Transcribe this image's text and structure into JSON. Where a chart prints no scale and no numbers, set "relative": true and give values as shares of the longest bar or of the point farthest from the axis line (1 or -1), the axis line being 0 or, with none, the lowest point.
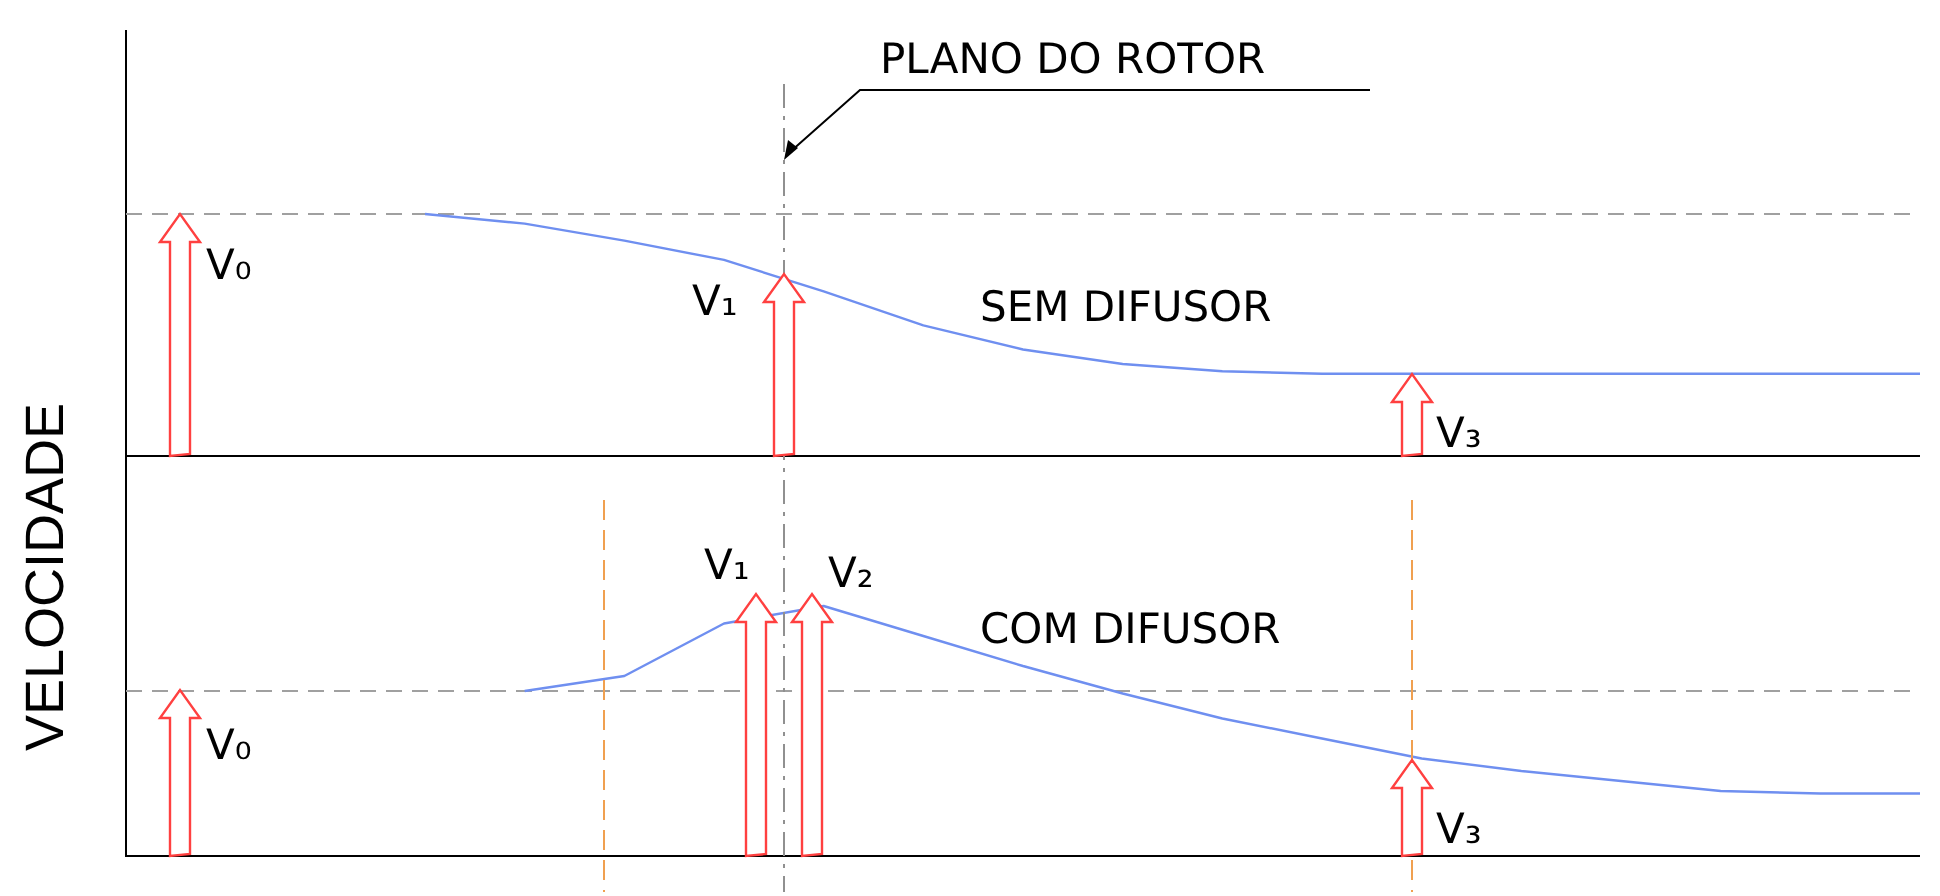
{
  "chart_data": [
    {
      "type": "line",
      "relative": true,
      "ylabel": "VELOCIDADE",
      "categories": [
        null,
        null,
        null,
        null,
        null,
        null,
        null,
        null,
        null,
        null,
        null,
        null,
        null,
        null,
        null,
        null,
        null,
        null,
        null
      ],
      "series": [
        {
          "color": "#6f8ff0",
          "values": [
            null,
            null,
            null,
            1,
            0.96,
            0.89,
            0.81,
            0.68,
            0.54,
            0.44,
            0.38,
            0.35,
            0.34,
            0.34,
            0.34,
            0.34,
            0.34,
            0.34,
            0.34
          ]
        }
      ],
      "ref_lines": [
        {
          "axis": "y",
          "value": 1,
          "color": "#a0a0a0",
          "line_style": "dashed"
        }
      ],
      "annotations": [
        "PLANO DO ROTOR",
        "SEM DIFUSOR",
        "V₀",
        "V₁",
        "V₃"
      ],
      "legend": false,
      "marker": "none",
      "line_style": "solid"
    },
    {
      "type": "line",
      "relative": true,
      "categories": [
        null,
        null,
        null,
        null,
        null,
        null,
        null,
        null,
        null,
        null,
        null,
        null,
        null,
        null,
        null,
        null,
        null,
        null,
        null
      ],
      "series": [
        {
          "color": "#6f8ff0",
          "values": [
            null,
            null,
            null,
            null,
            0.66,
            0.72,
            0.93,
            1,
            0.88,
            0.76,
            0.65,
            0.55,
            0.47,
            0.39,
            0.34,
            0.3,
            0.26,
            0.25,
            0.25
          ]
        }
      ],
      "ref_lines": [
        {
          "axis": "y",
          "value": 0.66,
          "color": "#a0a0a0",
          "line_style": "dashed"
        }
      ],
      "annotations": [
        "COM DIFUSOR",
        "V₀",
        "V₁",
        "V₂",
        "V₃"
      ],
      "legend": false,
      "marker": "none",
      "line_style": "solid"
    }
  ]
}
